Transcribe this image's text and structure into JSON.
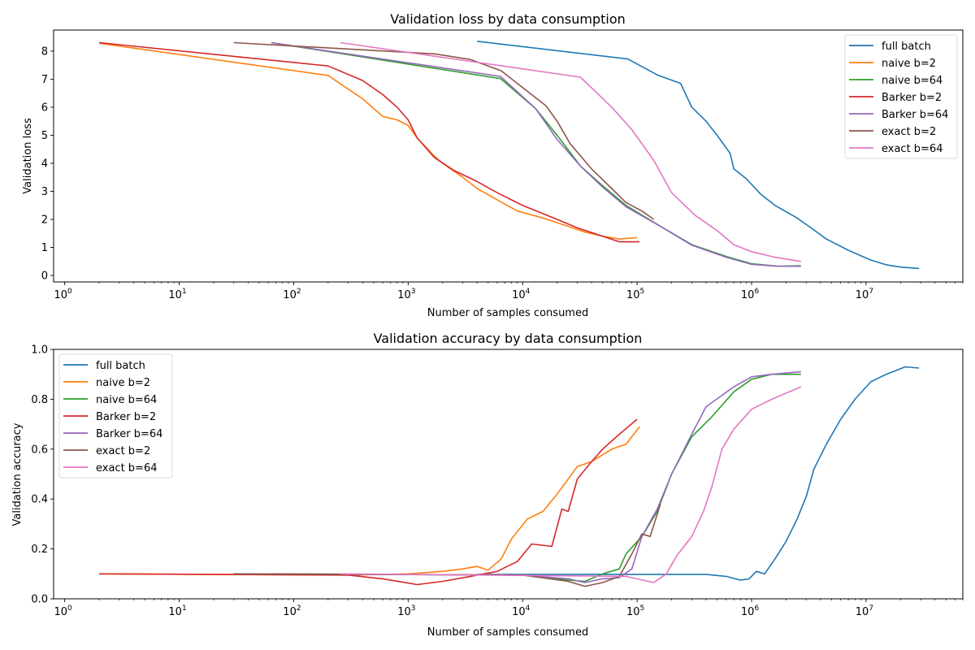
{
  "chart_data": [
    {
      "type": "line",
      "title": "Validation loss by data consumption",
      "xlabel": "Number of samples consumed",
      "ylabel": "Validation loss",
      "xscale": "log",
      "xlim": [
        0.8,
        70000000
      ],
      "ylim": [
        -0.23,
        8.75
      ],
      "xticks": [
        1,
        10,
        100,
        1000,
        10000,
        100000,
        1000000,
        10000000
      ],
      "xtick_labels": [
        [
          "10",
          "0"
        ],
        [
          "10",
          "1"
        ],
        [
          "10",
          "2"
        ],
        [
          "10",
          "3"
        ],
        [
          "10",
          "4"
        ],
        [
          "10",
          "5"
        ],
        [
          "10",
          "6"
        ],
        [
          "10",
          "7"
        ]
      ],
      "yticks": [
        0,
        1,
        2,
        3,
        4,
        5,
        6,
        7,
        8
      ],
      "ytick_labels": [
        "0",
        "1",
        "2",
        "3",
        "4",
        "5",
        "6",
        "7",
        "8"
      ],
      "grid": false,
      "legend_position": "top-right",
      "series": [
        {
          "name": "full batch",
          "color": "#1f77b4",
          "x": [
            4000,
            83000,
            150000,
            240000,
            300000,
            400000,
            500000,
            650000,
            700000,
            900000,
            1200000,
            1600000,
            2500000,
            3300000,
            4500000,
            7000000,
            11000000,
            15000000,
            20000000,
            29000000
          ],
          "y": [
            8.35,
            7.72,
            7.15,
            6.85,
            6.0,
            5.5,
            5.0,
            4.35,
            3.8,
            3.45,
            2.9,
            2.5,
            2.05,
            1.7,
            1.3,
            0.9,
            0.55,
            0.38,
            0.3,
            0.25
          ]
        },
        {
          "name": "naive b=2",
          "color": "#ff7f0e",
          "x": [
            2,
            200,
            400,
            600,
            800,
            1000,
            1200,
            1700,
            2000,
            3000,
            4000,
            6000,
            9000,
            15000,
            25000,
            35000,
            50000,
            70000,
            100000
          ],
          "y": [
            8.28,
            7.13,
            6.3,
            5.67,
            5.55,
            5.35,
            4.9,
            4.25,
            4.0,
            3.5,
            3.1,
            2.7,
            2.3,
            2.05,
            1.75,
            1.55,
            1.4,
            1.3,
            1.35
          ]
        },
        {
          "name": "naive b=64",
          "color": "#2ca02c",
          "x": [
            64,
            6400,
            13000,
            20000,
            32000,
            50000,
            80000,
            160000,
            300000,
            600000,
            1000000,
            1700000,
            2700000
          ],
          "y": [
            8.3,
            7.02,
            5.95,
            5.0,
            3.9,
            3.2,
            2.5,
            1.75,
            1.1,
            0.68,
            0.42,
            0.33,
            0.35
          ]
        },
        {
          "name": "Barker b=2",
          "color": "#d62728",
          "x": [
            2,
            200,
            400,
            600,
            800,
            1000,
            1200,
            1700,
            2500,
            4000,
            6000,
            10000,
            20000,
            30000,
            50000,
            70000,
            105000
          ],
          "y": [
            8.3,
            7.47,
            6.95,
            6.45,
            6.0,
            5.55,
            4.9,
            4.2,
            3.75,
            3.35,
            2.95,
            2.5,
            2.0,
            1.7,
            1.4,
            1.2,
            1.2
          ]
        },
        {
          "name": "Barker b=64",
          "color": "#9467bd",
          "x": [
            64,
            6400,
            13000,
            20000,
            32000,
            50000,
            80000,
            160000,
            300000,
            600000,
            1000000,
            1700000,
            2700000
          ],
          "y": [
            8.3,
            7.1,
            5.95,
            4.85,
            3.9,
            3.15,
            2.45,
            1.75,
            1.08,
            0.65,
            0.4,
            0.33,
            0.33
          ]
        },
        {
          "name": "exact b=2",
          "color": "#8c564b",
          "x": [
            30,
            1700,
            3500,
            6500,
            10000,
            16000,
            20000,
            26000,
            40000,
            60000,
            80000,
            110000,
            140000
          ],
          "y": [
            8.3,
            7.9,
            7.7,
            7.3,
            6.7,
            6.05,
            5.5,
            4.7,
            3.8,
            3.1,
            2.6,
            2.3,
            2.0
          ]
        },
        {
          "name": "exact b=64",
          "color": "#e377c2",
          "x": [
            256,
            32000,
            60000,
            90000,
            140000,
            200000,
            320000,
            500000,
            700000,
            1000000,
            1600000,
            2700000
          ],
          "y": [
            8.3,
            7.07,
            6.0,
            5.2,
            4.1,
            2.95,
            2.15,
            1.6,
            1.1,
            0.85,
            0.65,
            0.5
          ]
        }
      ]
    },
    {
      "type": "line",
      "title": "Validation accuracy by data consumption",
      "xlabel": "Number of samples consumed",
      "ylabel": "Validation accuracy",
      "xscale": "log",
      "xlim": [
        0.8,
        70000000
      ],
      "ylim": [
        0.0,
        1.0
      ],
      "xticks": [
        1,
        10,
        100,
        1000,
        10000,
        100000,
        1000000,
        10000000
      ],
      "xtick_labels": [
        [
          "10",
          "0"
        ],
        [
          "10",
          "1"
        ],
        [
          "10",
          "2"
        ],
        [
          "10",
          "3"
        ],
        [
          "10",
          "4"
        ],
        [
          "10",
          "5"
        ],
        [
          "10",
          "6"
        ],
        [
          "10",
          "7"
        ]
      ],
      "yticks": [
        0.0,
        0.2,
        0.4,
        0.6,
        0.8,
        1.0
      ],
      "ytick_labels": [
        "0.0",
        "0.2",
        "0.4",
        "0.6",
        "0.8",
        "1.0"
      ],
      "grid": false,
      "legend_position": "top-left",
      "series": [
        {
          "name": "full batch",
          "color": "#1f77b4",
          "x": [
            4000,
            400000,
            600000,
            800000,
            950000,
            1100000,
            1300000,
            1600000,
            2000000,
            2500000,
            3000000,
            3500000,
            4500000,
            6000000,
            8000000,
            11000000,
            15000000,
            22000000,
            29000000
          ],
          "y": [
            0.098,
            0.098,
            0.09,
            0.075,
            0.08,
            0.11,
            0.1,
            0.16,
            0.23,
            0.32,
            0.41,
            0.52,
            0.62,
            0.72,
            0.8,
            0.87,
            0.9,
            0.93,
            0.925
          ]
        },
        {
          "name": "naive b=2",
          "color": "#ff7f0e",
          "x": [
            2,
            300,
            1000,
            2000,
            3000,
            4000,
            5000,
            6500,
            8000,
            11000,
            15000,
            20000,
            25000,
            30000,
            40000,
            60000,
            80000,
            105000
          ],
          "y": [
            0.1,
            0.095,
            0.1,
            0.11,
            0.12,
            0.13,
            0.115,
            0.16,
            0.24,
            0.32,
            0.35,
            0.42,
            0.48,
            0.53,
            0.55,
            0.6,
            0.62,
            0.69
          ]
        },
        {
          "name": "naive b=64",
          "color": "#2ca02c",
          "x": [
            64,
            10000,
            25000,
            35000,
            50000,
            70000,
            80000,
            110000,
            150000,
            200000,
            300000,
            450000,
            700000,
            1000000,
            1500000,
            2700000
          ],
          "y": [
            0.1,
            0.095,
            0.075,
            0.07,
            0.1,
            0.12,
            0.18,
            0.25,
            0.35,
            0.5,
            0.65,
            0.73,
            0.83,
            0.88,
            0.9,
            0.9
          ]
        },
        {
          "name": "Barker b=2",
          "color": "#d62728",
          "x": [
            2,
            300,
            600,
            1200,
            2000,
            3500,
            6000,
            9000,
            12000,
            18000,
            22000,
            25000,
            30000,
            40000,
            50000,
            70000,
            100000
          ],
          "y": [
            0.1,
            0.095,
            0.08,
            0.057,
            0.07,
            0.09,
            0.11,
            0.15,
            0.22,
            0.21,
            0.36,
            0.35,
            0.48,
            0.55,
            0.6,
            0.66,
            0.72
          ]
        },
        {
          "name": "Barker b=64",
          "color": "#9467bd",
          "x": [
            64,
            10000,
            25000,
            35000,
            50000,
            70000,
            90000,
            110000,
            150000,
            200000,
            300000,
            400000,
            700000,
            1000000,
            1500000,
            2700000
          ],
          "y": [
            0.1,
            0.095,
            0.08,
            0.065,
            0.08,
            0.085,
            0.12,
            0.25,
            0.36,
            0.5,
            0.66,
            0.77,
            0.85,
            0.89,
            0.9,
            0.91
          ]
        },
        {
          "name": "exact b=2",
          "color": "#8c564b",
          "x": [
            30,
            10000,
            25000,
            35000,
            50000,
            70000,
            90000,
            110000,
            130000,
            160000
          ],
          "y": [
            0.1,
            0.095,
            0.07,
            0.05,
            0.065,
            0.09,
            0.18,
            0.26,
            0.25,
            0.38
          ]
        },
        {
          "name": "exact b=64",
          "color": "#e377c2",
          "x": [
            256,
            80000,
            140000,
            180000,
            220000,
            300000,
            380000,
            450000,
            550000,
            700000,
            1000000,
            1500000,
            2700000
          ],
          "y": [
            0.1,
            0.09,
            0.065,
            0.1,
            0.17,
            0.25,
            0.35,
            0.45,
            0.6,
            0.68,
            0.76,
            0.8,
            0.85
          ]
        }
      ]
    }
  ]
}
